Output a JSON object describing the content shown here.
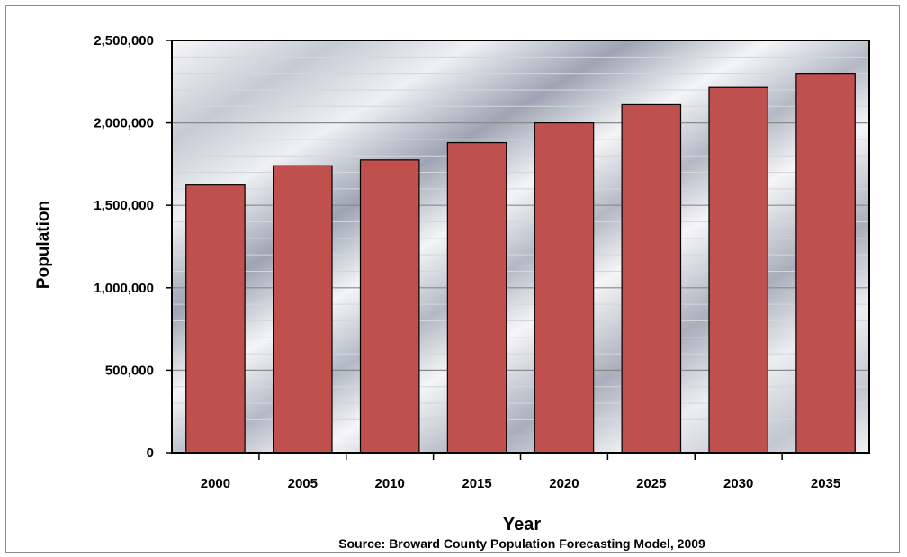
{
  "chart_data": {
    "type": "bar",
    "categories": [
      "2000",
      "2005",
      "2010",
      "2015",
      "2020",
      "2025",
      "2030",
      "2035"
    ],
    "values": [
      1623000,
      1740000,
      1775000,
      1880000,
      2000000,
      2110000,
      2215000,
      2300000
    ],
    "xlabel": "Year",
    "ylabel": "Population",
    "source": "Source: Broward County Population Forecasting Model, 2009",
    "ylim": [
      0,
      2500000
    ],
    "yticks": [
      0,
      500000,
      1000000,
      1500000,
      2000000,
      2500000
    ],
    "ytick_labels": [
      "0",
      "500,000",
      "1,000,000",
      "1,500,000",
      "2,000,000",
      "2,500,000"
    ],
    "grid": true,
    "bar_color": "#c0504d"
  }
}
